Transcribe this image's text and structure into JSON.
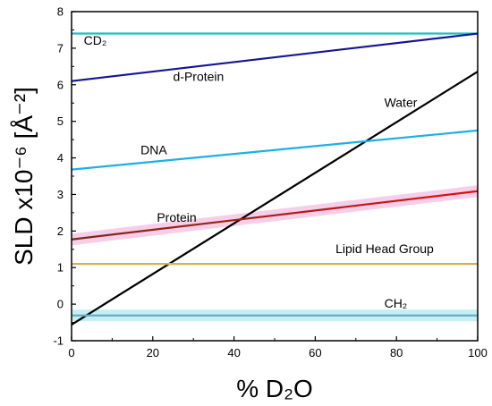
{
  "chart_data": {
    "type": "line",
    "xlabel": "% D₂O",
    "ylabel": "SLD x10⁻⁶ [Å⁻²]",
    "xlim": [
      0,
      100
    ],
    "ylim": [
      -1,
      8
    ],
    "x_ticks": [
      0,
      20,
      40,
      60,
      80,
      100
    ],
    "y_ticks": [
      -1,
      0,
      1,
      2,
      3,
      4,
      5,
      6,
      7,
      8
    ],
    "grid": false,
    "series": [
      {
        "name": "CD₂",
        "color": "#1fbfbf",
        "x": [
          0,
          100
        ],
        "y": [
          7.4,
          7.4
        ],
        "band_color": ""
      },
      {
        "name": "d-Protein",
        "color": "#141496",
        "x": [
          0,
          100
        ],
        "y": [
          6.1,
          7.4
        ],
        "band_color": ""
      },
      {
        "name": "Water",
        "color": "#000000",
        "x": [
          0,
          100
        ],
        "y": [
          -0.56,
          6.36
        ],
        "band_color": ""
      },
      {
        "name": "DNA",
        "color": "#1ab0e6",
        "x": [
          0,
          100
        ],
        "y": [
          3.68,
          4.75
        ],
        "band_color": ""
      },
      {
        "name": "Protein",
        "color": "#7a2a1a",
        "color_end": "#dd1111",
        "x": [
          0,
          100
        ],
        "y": [
          1.77,
          3.09
        ],
        "band_color": "#f5c6e6"
      },
      {
        "name": "Lipid Head Group",
        "color": "#d4b050",
        "x": [
          0,
          100
        ],
        "y": [
          1.1,
          1.1
        ],
        "band_color": ""
      },
      {
        "name": "CH₂",
        "color": "#6fa8c8",
        "x": [
          0,
          100
        ],
        "y": [
          -0.31,
          -0.31
        ],
        "band_color": "#b8eef2"
      }
    ],
    "labels": [
      {
        "text": "CD₂",
        "x": 3,
        "y": 7.1
      },
      {
        "text": "d-Protein",
        "x": 25,
        "y": 6.1
      },
      {
        "text": "Water",
        "x": 77,
        "y": 5.4
      },
      {
        "text": "DNA",
        "x": 17,
        "y": 4.1
      },
      {
        "text": "Protein",
        "x": 21,
        "y": 2.25
      },
      {
        "text": "Lipid Head Group",
        "x": 65,
        "y": 1.4
      },
      {
        "text": "CH₂",
        "x": 77,
        "y": -0.1
      }
    ]
  }
}
